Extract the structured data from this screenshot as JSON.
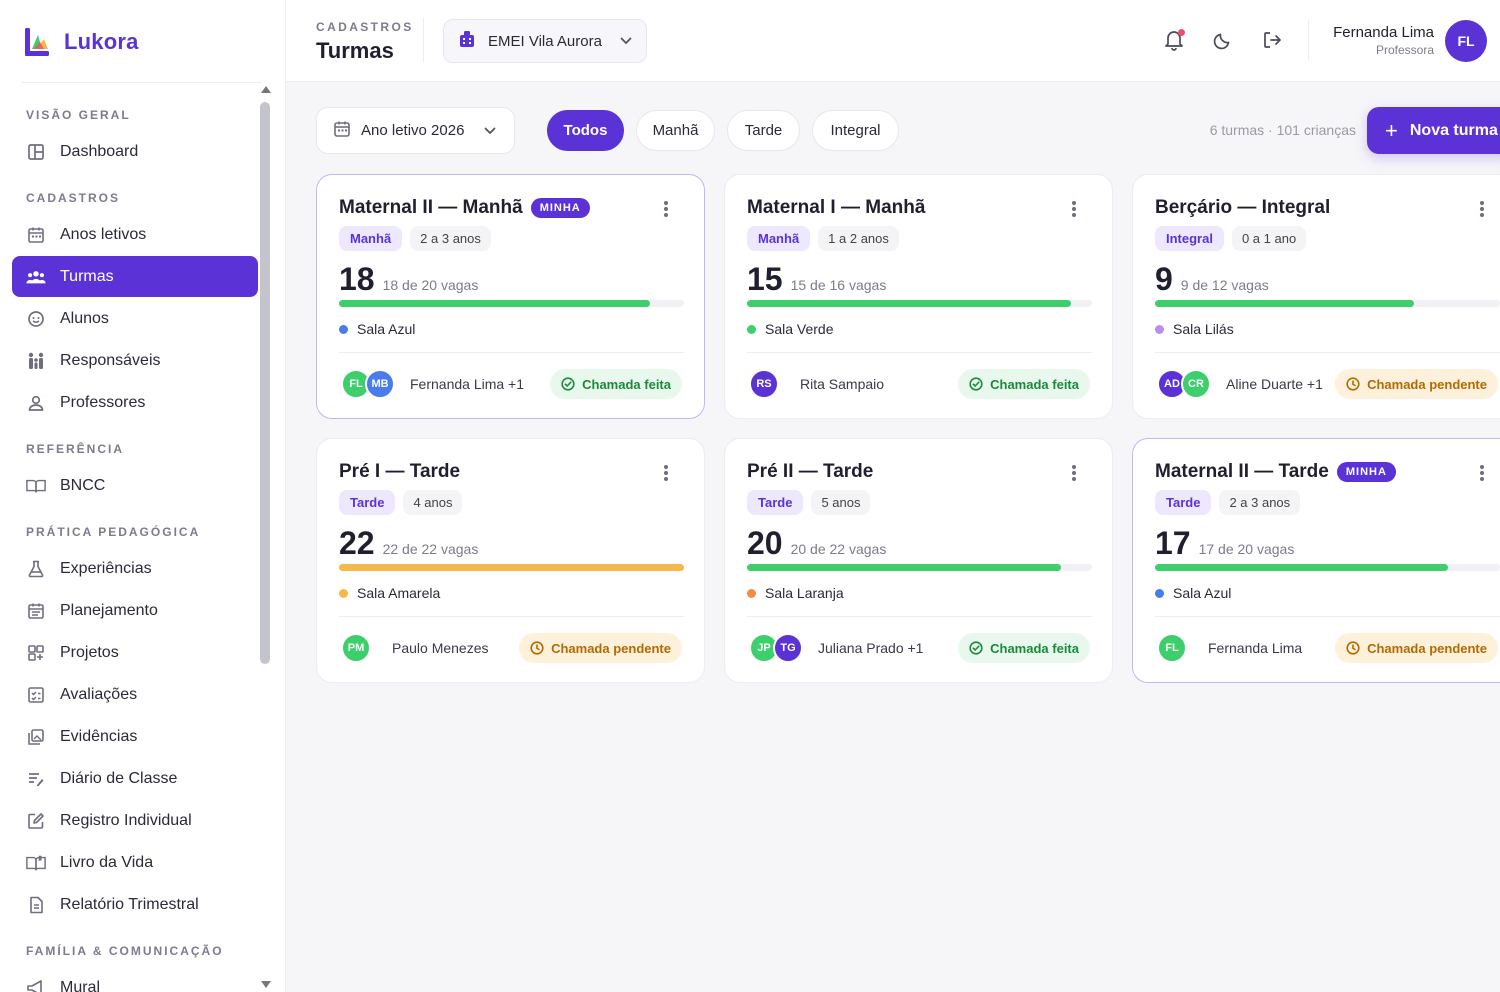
{
  "app": {
    "name": "Lukora"
  },
  "sidebar": {
    "sections": [
      {
        "title": "VISÃO GERAL",
        "items": [
          {
            "label": "Dashboard",
            "icon": "dashboard-icon",
            "active": false
          }
        ]
      },
      {
        "title": "CADASTROS",
        "items": [
          {
            "label": "Anos letivos",
            "icon": "calendar-icon",
            "active": false
          },
          {
            "label": "Turmas",
            "icon": "users-icon",
            "active": true
          },
          {
            "label": "Alunos",
            "icon": "face-icon",
            "active": false
          },
          {
            "label": "Responsáveis",
            "icon": "family-icon",
            "active": false
          },
          {
            "label": "Professores",
            "icon": "user-icon",
            "active": false
          }
        ]
      },
      {
        "title": "REFERÊNCIA",
        "items": [
          {
            "label": "BNCC",
            "icon": "book-open-icon",
            "active": false
          }
        ]
      },
      {
        "title": "PRÁTICA PEDAGÓGICA",
        "items": [
          {
            "label": "Experiências",
            "icon": "flask-icon",
            "active": false
          },
          {
            "label": "Planejamento",
            "icon": "planner-icon",
            "active": false
          },
          {
            "label": "Projetos",
            "icon": "grid-plus-icon",
            "active": false
          },
          {
            "label": "Avaliações",
            "icon": "checklist-icon",
            "active": false
          },
          {
            "label": "Evidências",
            "icon": "photo-stack-icon",
            "active": false
          },
          {
            "label": "Diário de Classe",
            "icon": "notes-icon",
            "active": false
          },
          {
            "label": "Registro Individual",
            "icon": "edit-icon",
            "active": false
          },
          {
            "label": "Livro da Vida",
            "icon": "book-icon",
            "active": false
          },
          {
            "label": "Relatório Trimestral",
            "icon": "document-icon",
            "active": false
          }
        ]
      },
      {
        "title": "FAMÍLIA & COMUNICAÇÃO",
        "items": [
          {
            "label": "Mural",
            "icon": "megaphone-icon",
            "active": false
          }
        ]
      }
    ]
  },
  "header": {
    "section": "CADASTROS",
    "title": "Turmas",
    "school": "EMEI Vila Aurora",
    "user": {
      "name": "Fernanda Lima",
      "role": "Professora",
      "initials": "FL"
    }
  },
  "toolbar": {
    "year": "Ano letivo 2026",
    "filters": [
      "Todos",
      "Manhã",
      "Tarde",
      "Integral"
    ],
    "active_filter": "Todos",
    "summary": "6 turmas · 101 crianças",
    "new_button": "Nova turma"
  },
  "colors": {
    "accent": "#5b32d6",
    "green": "#3ccf6b",
    "orange": "#f7b84b"
  },
  "classes": [
    {
      "title": "Maternal II — Manhã",
      "mine": true,
      "badge": "MINHA",
      "shift": "Manhã",
      "age": "2 a 3 anos",
      "count": "18",
      "capacity": "18 de 20 vagas",
      "fill": 0.9,
      "bar_color": "#3ccf6b",
      "room": "Sala Azul",
      "room_color": "#4a7bea",
      "avatars": [
        {
          "initials": "FL",
          "color": "#3ccf6b"
        },
        {
          "initials": "MB",
          "color": "#4a7bea"
        }
      ],
      "teacher": "Fernanda Lima +1",
      "status": "Chamada feita",
      "status_type": "done"
    },
    {
      "title": "Maternal I — Manhã",
      "mine": false,
      "badge": "",
      "shift": "Manhã",
      "age": "1 a 2 anos",
      "count": "15",
      "capacity": "15 de 16 vagas",
      "fill": 0.9375,
      "bar_color": "#3ccf6b",
      "room": "Sala Verde",
      "room_color": "#3ccf6b",
      "avatars": [
        {
          "initials": "RS",
          "color": "#5b32d6"
        }
      ],
      "teacher": "Rita Sampaio",
      "status": "Chamada feita",
      "status_type": "done"
    },
    {
      "title": "Berçário — Integral",
      "mine": false,
      "badge": "",
      "shift": "Integral",
      "age": "0 a 1 ano",
      "count": "9",
      "capacity": "9 de 12 vagas",
      "fill": 0.75,
      "bar_color": "#3ccf6b",
      "room": "Sala Lilás",
      "room_color": "#b98ef0",
      "avatars": [
        {
          "initials": "AD",
          "color": "#5b32d6"
        },
        {
          "initials": "CR",
          "color": "#3ccf6b"
        }
      ],
      "teacher": "Aline Duarte +1",
      "status": "Chamada pendente",
      "status_type": "pending"
    },
    {
      "title": "Pré I — Tarde",
      "mine": false,
      "badge": "",
      "shift": "Tarde",
      "age": "4 anos",
      "count": "22",
      "capacity": "22 de 22 vagas",
      "fill": 1.0,
      "bar_color": "#f7b84b",
      "room": "Sala Amarela",
      "room_color": "#f7b84b",
      "avatars": [
        {
          "initials": "PM",
          "color": "#3ccf6b"
        }
      ],
      "teacher": "Paulo Menezes",
      "status": "Chamada pendente",
      "status_type": "pending"
    },
    {
      "title": "Pré II — Tarde",
      "mine": false,
      "badge": "",
      "shift": "Tarde",
      "age": "5 anos",
      "count": "20",
      "capacity": "20 de 22 vagas",
      "fill": 0.909,
      "bar_color": "#3ccf6b",
      "room": "Sala Laranja",
      "room_color": "#f58a4b",
      "avatars": [
        {
          "initials": "JP",
          "color": "#3ccf6b"
        },
        {
          "initials": "TG",
          "color": "#5b32d6"
        }
      ],
      "teacher": "Juliana Prado +1",
      "status": "Chamada feita",
      "status_type": "done"
    },
    {
      "title": "Maternal II — Tarde",
      "mine": true,
      "badge": "MINHA",
      "shift": "Tarde",
      "age": "2 a 3 anos",
      "count": "17",
      "capacity": "17 de 20 vagas",
      "fill": 0.85,
      "bar_color": "#3ccf6b",
      "room": "Sala Azul",
      "room_color": "#4a7bea",
      "avatars": [
        {
          "initials": "FL",
          "color": "#3ccf6b"
        }
      ],
      "teacher": "Fernanda Lima",
      "status": "Chamada pendente",
      "status_type": "pending"
    }
  ]
}
